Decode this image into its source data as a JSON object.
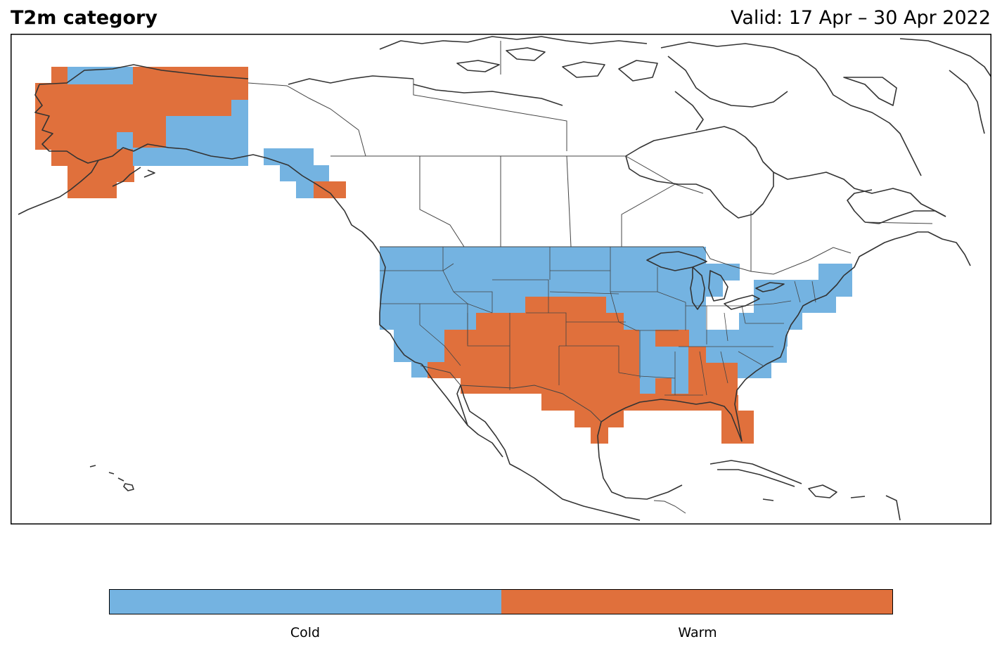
{
  "title": "T2m category",
  "valid": "Valid: 17 Apr – 30 Apr 2022",
  "colors": {
    "cold": "#74b3e1",
    "warm": "#e0703c",
    "coast": "#333333",
    "border": "#444444"
  },
  "legend": {
    "items": [
      {
        "label": "Cold",
        "color": "#74b3e1"
      },
      {
        "label": "Warm",
        "color": "#e0703c"
      }
    ]
  }
}
